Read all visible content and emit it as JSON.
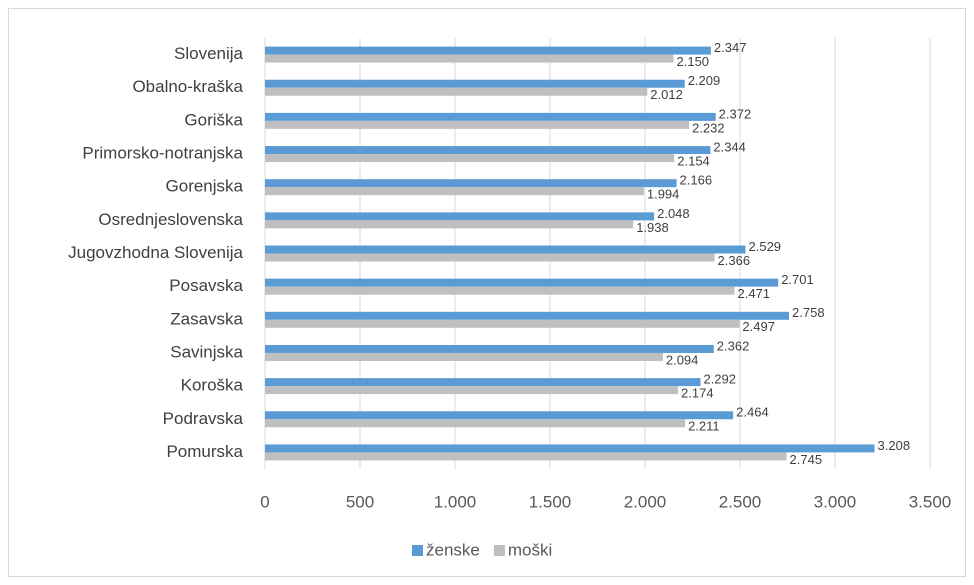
{
  "chart_data": {
    "type": "bar",
    "orientation": "horizontal",
    "categories": [
      "Slovenija",
      "Obalno-kraška",
      "Goriška",
      "Primorsko-notranjska",
      "Gorenjska",
      "Osrednjeslovenska",
      "Jugovzhodna Slovenija",
      "Posavska",
      "Zasavska",
      "Savinjska",
      "Koroška",
      "Podravska",
      "Pomurska"
    ],
    "series": [
      {
        "name": "ženske",
        "color": "#5b9bd5",
        "values": [
          2347,
          2209,
          2372,
          2344,
          2166,
          2048,
          2529,
          2701,
          2758,
          2362,
          2292,
          2464,
          3208
        ],
        "value_labels": [
          "2.347",
          "2.209",
          "2.372",
          "2.344",
          "2.166",
          "2.048",
          "2.529",
          "2.701",
          "2.758",
          "2.362",
          "2.292",
          "2.464",
          "3.208"
        ]
      },
      {
        "name": "moški",
        "color": "#bfbfbf",
        "values": [
          2150,
          2012,
          2232,
          2154,
          1994,
          1938,
          2366,
          2471,
          2497,
          2094,
          2174,
          2211,
          2745
        ],
        "value_labels": [
          "2.150",
          "2.012",
          "2.232",
          "2.154",
          "1.994",
          "1.938",
          "2.366",
          "2.471",
          "2.497",
          "2.094",
          "2.174",
          "2.211",
          "2.745"
        ]
      }
    ],
    "xlim": [
      0,
      3500
    ],
    "xticks": [
      0,
      500,
      {
        "value": 1000,
        "label": "1.000"
      },
      {
        "value": 1500,
        "label": "1.500"
      },
      {
        "value": 2000,
        "label": "2.000"
      },
      {
        "value": 2500,
        "label": "2.500"
      },
      {
        "value": 3000,
        "label": "3.000"
      },
      {
        "value": 3500,
        "label": "3.500"
      }
    ],
    "grid": true,
    "legend": "bottom"
  }
}
